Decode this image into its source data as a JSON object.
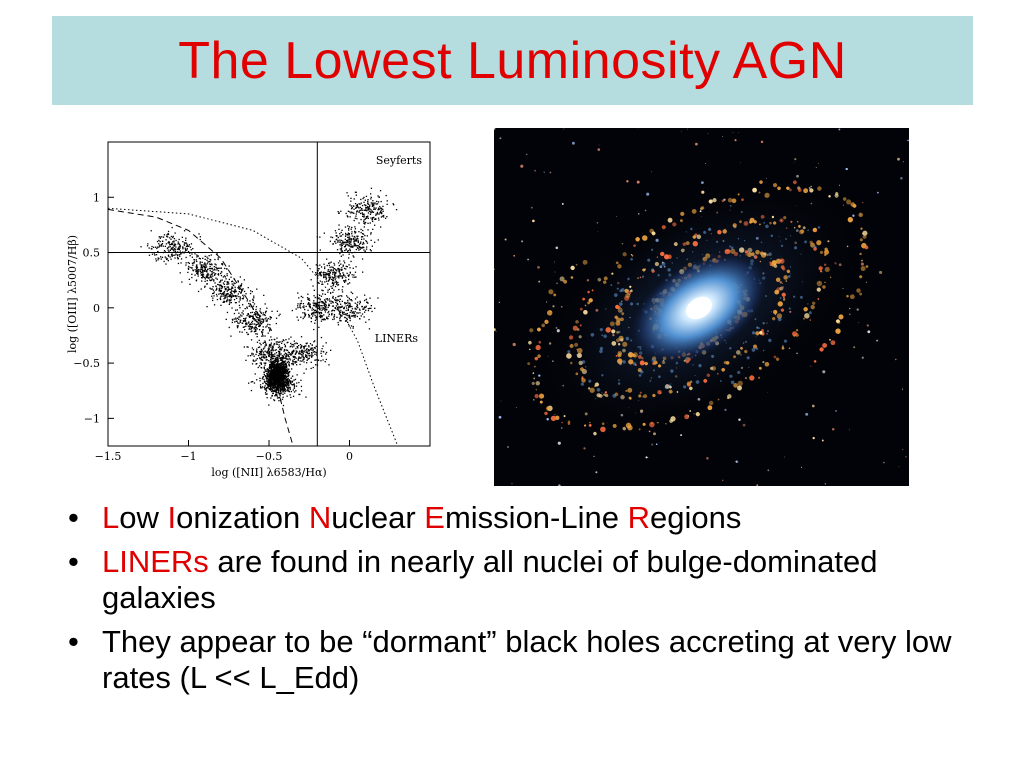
{
  "title": "The Lowest Luminosity AGN",
  "chart_data": {
    "type": "scatter",
    "title": "",
    "xlabel": "log ([NII] λ6583/Hα)",
    "ylabel": "log ([OIII] λ5007/Hβ)",
    "xlim": [
      -1.5,
      0.5
    ],
    "ylim": [
      -1.25,
      1.5
    ],
    "xticks": [
      "−1.5",
      "−1",
      "−0.5",
      "0"
    ],
    "yticks": [
      "−1",
      "−0.5",
      "0",
      "0.5",
      "1"
    ],
    "region_labels": [
      "Seyferts",
      "LINERs"
    ],
    "divider_x": -0.2,
    "divider_y": 0.5,
    "series": [
      {
        "values": [
          [
            -0.45,
            -0.7
          ],
          [
            -0.5,
            -0.4
          ],
          [
            -0.6,
            -0.1
          ],
          [
            -0.75,
            0.15
          ],
          [
            -0.9,
            0.35
          ],
          [
            -1.1,
            0.55
          ],
          [
            -0.3,
            -0.4
          ],
          [
            -0.2,
            0.0
          ],
          [
            -0.1,
            0.3
          ],
          [
            0.0,
            0.6
          ],
          [
            0.1,
            0.9
          ],
          [
            0.0,
            0.0
          ]
        ]
      }
    ],
    "curves": [
      {
        "style": "dashed",
        "points": [
          [
            -1.5,
            0.89
          ],
          [
            -1.2,
            0.82
          ],
          [
            -1.0,
            0.7
          ],
          [
            -0.8,
            0.45
          ],
          [
            -0.6,
            0.0
          ],
          [
            -0.5,
            -0.4
          ],
          [
            -0.4,
            -1.0
          ],
          [
            -0.35,
            -1.25
          ]
        ]
      },
      {
        "style": "dotted",
        "points": [
          [
            -1.5,
            0.9
          ],
          [
            -1.0,
            0.85
          ],
          [
            -0.6,
            0.7
          ],
          [
            -0.3,
            0.45
          ],
          [
            -0.1,
            0.1
          ],
          [
            0.05,
            -0.3
          ],
          [
            0.15,
            -0.7
          ],
          [
            0.3,
            -1.25
          ]
        ]
      }
    ]
  },
  "bullets": [
    {
      "parts": [
        {
          "t": "L",
          "red": true
        },
        {
          "t": "ow ",
          "red": false
        },
        {
          "t": "I",
          "red": true
        },
        {
          "t": "onization ",
          "red": false
        },
        {
          "t": "N",
          "red": true
        },
        {
          "t": "uclear ",
          "red": false
        },
        {
          "t": "E",
          "red": true
        },
        {
          "t": "mission-Line ",
          "red": false
        },
        {
          "t": "R",
          "red": true
        },
        {
          "t": "egions",
          "red": false
        }
      ]
    },
    {
      "parts": [
        {
          "t": "LINERs",
          "red": true
        },
        {
          "t": " are found in nearly all nuclei of bulge-dominated galaxies",
          "red": false
        }
      ]
    },
    {
      "parts": [
        {
          "t": "They appear to be “dormant” black holes accreting at very low rates (L << L_Edd)",
          "red": false
        }
      ]
    }
  ],
  "bullet_symbol": "•",
  "colors": {
    "title": "#e00000",
    "title_bg": "#b5dde0",
    "accent": "#e00000"
  }
}
